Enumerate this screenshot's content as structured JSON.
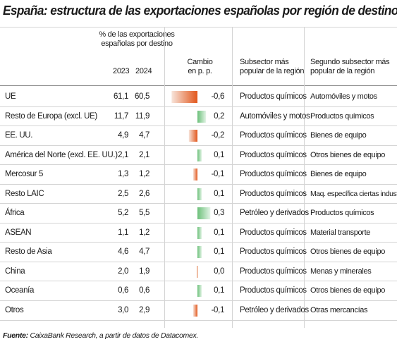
{
  "title": "España: estructura de las exportaciones españolas por región de destino",
  "headers": {
    "pct_line1": "% de las exportaciones",
    "pct_line2": "españolas por destino",
    "year_2023": "2023",
    "year_2024": "2024",
    "cambio_line1": "Cambio",
    "cambio_line2": "en p. p.",
    "sub1_line1": "Subsector más",
    "sub1_line2": "popular de la región",
    "sub2_line1": "Segundo subsector más",
    "sub2_line2": "popular de la región"
  },
  "colors": {
    "negative": "#e2571c",
    "positive": "#6cc07a",
    "rule": "#d4d4d4"
  },
  "chart_data": {
    "type": "table",
    "columns": [
      "2023",
      "2024",
      "Cambio en p. p.",
      "Subsector más popular de la región",
      "Segundo subsector más popular de la región"
    ],
    "rows": [
      {
        "region": "UE",
        "v2023": "61,1",
        "v2024": "60,5",
        "change": -0.6,
        "change_label": "-0,6",
        "sub1": "Productos químicos",
        "sub2": "Automóviles y motos"
      },
      {
        "region": "Resto de Europa (excl. UE)",
        "v2023": "11,7",
        "v2024": "11,9",
        "change": 0.2,
        "change_label": "0,2",
        "sub1": "Automóviles y motos",
        "sub2": "Productos químicos"
      },
      {
        "region": "EE. UU.",
        "v2023": "4,9",
        "v2024": "4,7",
        "change": -0.2,
        "change_label": "-0,2",
        "sub1": "Productos químicos",
        "sub2": "Bienes de equipo"
      },
      {
        "region": "América del Norte (excl. EE. UU.)",
        "v2023": "2,1",
        "v2024": "2,1",
        "change": 0.1,
        "change_label": "0,1",
        "sub1": "Productos químicos",
        "sub2": "Otros bienes de equipo"
      },
      {
        "region": "Mercosur 5",
        "v2023": "1,3",
        "v2024": "1,2",
        "change": -0.1,
        "change_label": "-0,1",
        "sub1": "Productos químicos",
        "sub2": "Bienes de equipo"
      },
      {
        "region": "Resto LAIC",
        "v2023": "2,5",
        "v2024": "2,6",
        "change": 0.1,
        "change_label": "0,1",
        "sub1": "Productos químicos",
        "sub2": "Maq. específica ciertas industrias"
      },
      {
        "region": "África",
        "v2023": "5,2",
        "v2024": "5,5",
        "change": 0.3,
        "change_label": "0,3",
        "sub1": "Petróleo y derivados",
        "sub2": "Productos químicos"
      },
      {
        "region": "ASEAN",
        "v2023": "1,1",
        "v2024": "1,2",
        "change": 0.1,
        "change_label": "0,1",
        "sub1": "Productos químicos",
        "sub2": "Material transporte"
      },
      {
        "region": "Resto de Asia",
        "v2023": "4,6",
        "v2024": "4,7",
        "change": 0.1,
        "change_label": "0,1",
        "sub1": "Productos químicos",
        "sub2": "Otros bienes de equipo"
      },
      {
        "region": "China",
        "v2023": "2,0",
        "v2024": "1,9",
        "change": 0.0,
        "change_label": "0,0",
        "sub1": "Productos químicos",
        "sub2": "Menas y minerales"
      },
      {
        "region": "Oceanía",
        "v2023": "0,6",
        "v2024": "0,6",
        "change": 0.1,
        "change_label": "0,1",
        "sub1": "Productos químicos",
        "sub2": "Otros bienes de equipo"
      },
      {
        "region": "Otros",
        "v2023": "3,0",
        "v2024": "2,9",
        "change": -0.1,
        "change_label": "-0,1",
        "sub1": "Petróleo y derivados",
        "sub2": "Otras mercancías"
      }
    ]
  },
  "source": {
    "label": "Fuente:",
    "text": "CaixaBank Research, a partir de datos de Datacomex."
  }
}
